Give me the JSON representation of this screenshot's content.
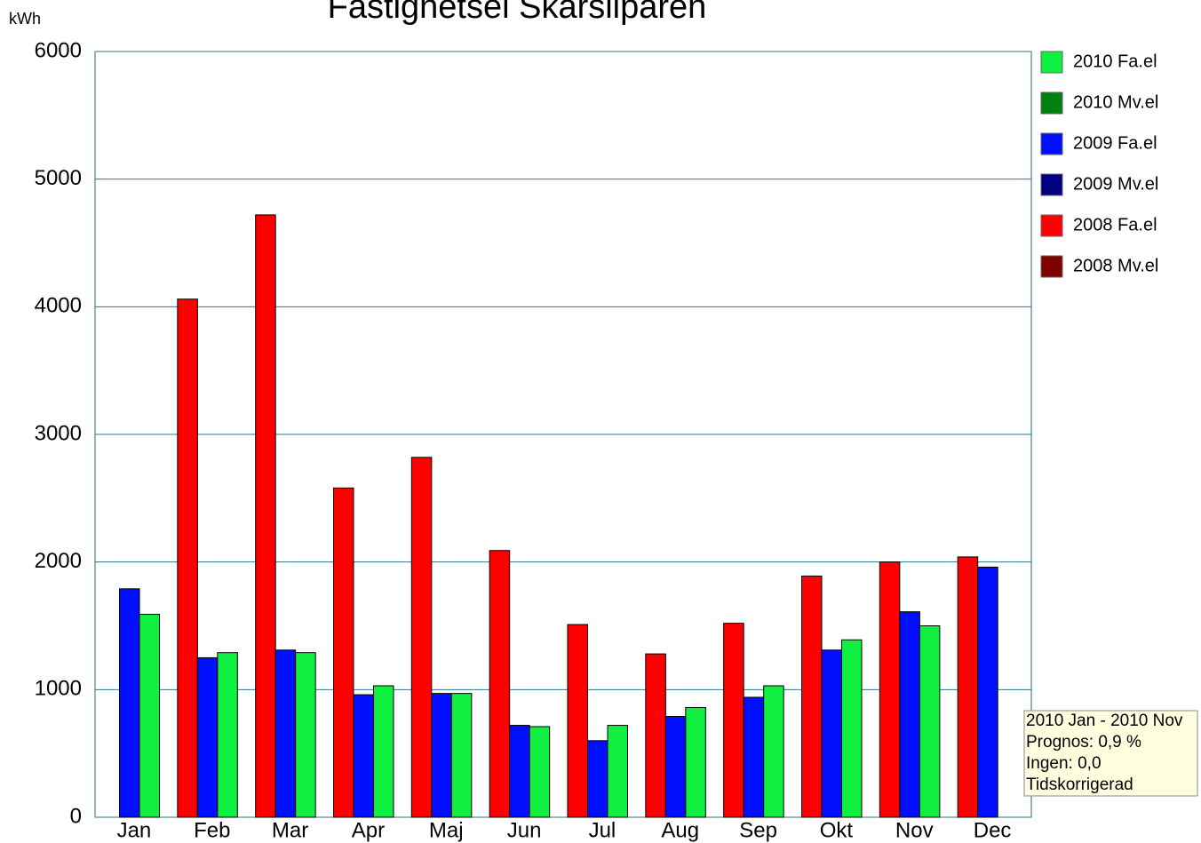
{
  "chart_data": {
    "type": "bar",
    "title": "Fastighetsel Skärsliparen",
    "y_label": "kWh",
    "categories": [
      "Jan",
      "Feb",
      "Mar",
      "Apr",
      "Maj",
      "Jun",
      "Jul",
      "Aug",
      "Sep",
      "Okt",
      "Nov",
      "Dec"
    ],
    "series": [
      {
        "name": "2010 Fa.el",
        "color": "#10f040",
        "values": [
          1590,
          1290,
          1290,
          1030,
          970,
          710,
          720,
          860,
          1030,
          1390,
          1500,
          null
        ]
      },
      {
        "name": "2010 Mv.el",
        "color": "#008010",
        "values": [
          null,
          null,
          null,
          null,
          null,
          null,
          null,
          null,
          null,
          null,
          null,
          null
        ]
      },
      {
        "name": "2009 Fa.el",
        "color": "#0010ff",
        "values": [
          1790,
          1250,
          1310,
          960,
          970,
          720,
          600,
          790,
          940,
          1310,
          1610,
          1960
        ]
      },
      {
        "name": "2009 Mv.el",
        "color": "#000080",
        "values": [
          null,
          null,
          null,
          null,
          null,
          null,
          null,
          null,
          null,
          null,
          null,
          null
        ]
      },
      {
        "name": "2008 Fa.el",
        "color": "#ff0000",
        "values": [
          null,
          4060,
          4720,
          2580,
          2820,
          2090,
          1510,
          1280,
          1520,
          1890,
          2000,
          2040
        ]
      },
      {
        "name": "2008 Mv.el",
        "color": "#800000",
        "values": [
          null,
          null,
          null,
          null,
          null,
          null,
          null,
          null,
          null,
          null,
          null,
          null
        ]
      }
    ],
    "ylim": [
      0,
      6000
    ],
    "yticks": [
      0,
      1000,
      2000,
      3000,
      4000,
      5000,
      6000
    ],
    "grid": true,
    "legend": "right",
    "annotation": [
      "2010 Jan - 2010 Nov",
      "Prognos: 0,9 %",
      "Ingen: 0,0",
      "Tidskorrigerad"
    ]
  }
}
